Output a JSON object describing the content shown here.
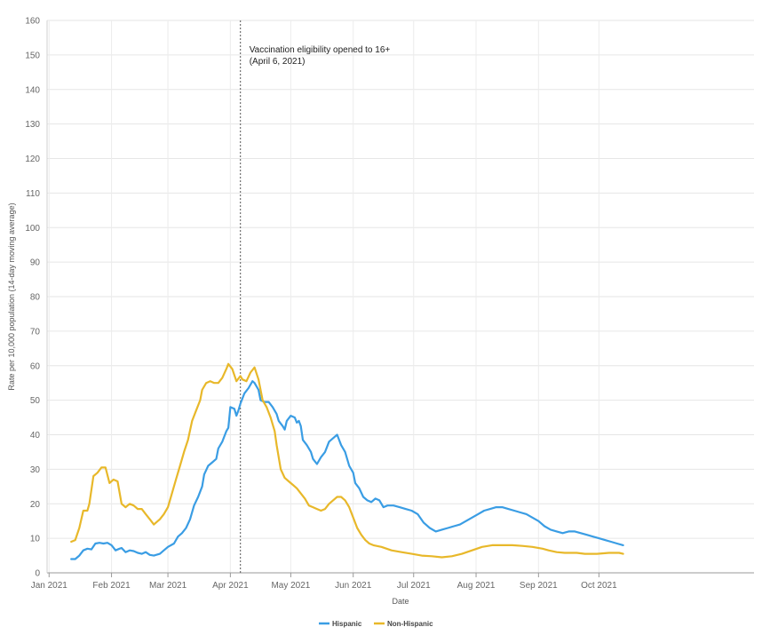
{
  "chart_data": {
    "type": "line",
    "title": "",
    "xlabel": "Date",
    "ylabel": "Rate per 10,000 population (14-day moving average)",
    "ylim": [
      0,
      160
    ],
    "yticks": [
      0,
      10,
      20,
      30,
      40,
      50,
      60,
      70,
      80,
      90,
      100,
      110,
      120,
      130,
      140,
      150,
      160
    ],
    "xlim": [
      -1,
      350
    ],
    "xticks": [
      {
        "day": 0,
        "label": "Jan 2021"
      },
      {
        "day": 31,
        "label": "Feb 2021"
      },
      {
        "day": 59,
        "label": "Mar 2021"
      },
      {
        "day": 90,
        "label": "Apr 2021"
      },
      {
        "day": 120,
        "label": "May 2021"
      },
      {
        "day": 151,
        "label": "Jun 2021"
      },
      {
        "day": 181,
        "label": "Jul 2021"
      },
      {
        "day": 212,
        "label": "Aug 2021"
      },
      {
        "day": 243,
        "label": "Sep 2021"
      },
      {
        "day": 273,
        "label": "Oct 2021"
      }
    ],
    "x_unit": "days since Jan 1, 2021",
    "annotation": {
      "day": 95,
      "line1": "Vaccination eligibility opened to 16+",
      "line2": "(April 6, 2021)"
    },
    "legend_position": "bottom-center",
    "series": [
      {
        "name": "Hispanic",
        "color": "#3a9de4",
        "points": [
          [
            11,
            4
          ],
          [
            13,
            4
          ],
          [
            15,
            5
          ],
          [
            17,
            6.5
          ],
          [
            19,
            7
          ],
          [
            21,
            6.8
          ],
          [
            23,
            8.5
          ],
          [
            25,
            8.7
          ],
          [
            27,
            8.5
          ],
          [
            29,
            8.7
          ],
          [
            31,
            8
          ],
          [
            33,
            6.5
          ],
          [
            35,
            7
          ],
          [
            36,
            7.2
          ],
          [
            38,
            6
          ],
          [
            40,
            6.5
          ],
          [
            42,
            6.3
          ],
          [
            44,
            5.8
          ],
          [
            46,
            5.5
          ],
          [
            48,
            6
          ],
          [
            50,
            5.2
          ],
          [
            52,
            5
          ],
          [
            55,
            5.5
          ],
          [
            57,
            6.5
          ],
          [
            59,
            7.5
          ],
          [
            62,
            8.5
          ],
          [
            64,
            10.5
          ],
          [
            66,
            11.5
          ],
          [
            68,
            13
          ],
          [
            70,
            15.5
          ],
          [
            72,
            19.5
          ],
          [
            74,
            22
          ],
          [
            76,
            25
          ],
          [
            77,
            28.5
          ],
          [
            79,
            31
          ],
          [
            81,
            32
          ],
          [
            83,
            33
          ],
          [
            84,
            36
          ],
          [
            86,
            38
          ],
          [
            88,
            41
          ],
          [
            89,
            42
          ],
          [
            90,
            48
          ],
          [
            92,
            47.5
          ],
          [
            93,
            45.5
          ],
          [
            94,
            47
          ],
          [
            95,
            49
          ],
          [
            97,
            52
          ],
          [
            99,
            53.5
          ],
          [
            101,
            55.5
          ],
          [
            102,
            55
          ],
          [
            104,
            53
          ],
          [
            105,
            50
          ],
          [
            107,
            49.5
          ],
          [
            109,
            49.5
          ],
          [
            111,
            48
          ],
          [
            113,
            46
          ],
          [
            114,
            44
          ],
          [
            116,
            42.5
          ],
          [
            117,
            41.5
          ],
          [
            118,
            44
          ],
          [
            120,
            45.5
          ],
          [
            122,
            45
          ],
          [
            123,
            43.5
          ],
          [
            124,
            44
          ],
          [
            125,
            42.5
          ],
          [
            126,
            38.5
          ],
          [
            128,
            37
          ],
          [
            130,
            35
          ],
          [
            131,
            33
          ],
          [
            133,
            31.5
          ],
          [
            135,
            33.5
          ],
          [
            137,
            35
          ],
          [
            139,
            38
          ],
          [
            141,
            39
          ],
          [
            143,
            40
          ],
          [
            145,
            37
          ],
          [
            147,
            35
          ],
          [
            149,
            31
          ],
          [
            151,
            29
          ],
          [
            152,
            26
          ],
          [
            154,
            24.5
          ],
          [
            156,
            22
          ],
          [
            158,
            21
          ],
          [
            160,
            20.5
          ],
          [
            162,
            21.5
          ],
          [
            164,
            21
          ],
          [
            166,
            19
          ],
          [
            168,
            19.5
          ],
          [
            171,
            19.5
          ],
          [
            174,
            19
          ],
          [
            177,
            18.5
          ],
          [
            180,
            18
          ],
          [
            183,
            17
          ],
          [
            186,
            14.5
          ],
          [
            189,
            13
          ],
          [
            192,
            12
          ],
          [
            195,
            12.5
          ],
          [
            198,
            13
          ],
          [
            201,
            13.5
          ],
          [
            204,
            14
          ],
          [
            207,
            15
          ],
          [
            210,
            16
          ],
          [
            213,
            17
          ],
          [
            216,
            18
          ],
          [
            219,
            18.5
          ],
          [
            222,
            19
          ],
          [
            225,
            19
          ],
          [
            228,
            18.5
          ],
          [
            231,
            18
          ],
          [
            234,
            17.5
          ],
          [
            237,
            17
          ],
          [
            240,
            16
          ],
          [
            243,
            15
          ],
          [
            246,
            13.5
          ],
          [
            249,
            12.5
          ],
          [
            252,
            12
          ],
          [
            255,
            11.5
          ],
          [
            258,
            12
          ],
          [
            261,
            12
          ],
          [
            264,
            11.5
          ],
          [
            267,
            11
          ],
          [
            270,
            10.5
          ],
          [
            273,
            10
          ],
          [
            276,
            9.5
          ],
          [
            279,
            9
          ],
          [
            282,
            8.5
          ],
          [
            285,
            8
          ]
        ]
      },
      {
        "name": "Non-Hispanic",
        "color": "#e8b82a",
        "points": [
          [
            11,
            9
          ],
          [
            13,
            9.5
          ],
          [
            15,
            13
          ],
          [
            17,
            18
          ],
          [
            19,
            18
          ],
          [
            20,
            20
          ],
          [
            22,
            28
          ],
          [
            24,
            29
          ],
          [
            26,
            30.5
          ],
          [
            28,
            30.5
          ],
          [
            30,
            26
          ],
          [
            32,
            27
          ],
          [
            34,
            26.5
          ],
          [
            36,
            20
          ],
          [
            38,
            19
          ],
          [
            40,
            20
          ],
          [
            42,
            19.5
          ],
          [
            44,
            18.5
          ],
          [
            46,
            18.5
          ],
          [
            48,
            17
          ],
          [
            50,
            15.5
          ],
          [
            52,
            14
          ],
          [
            55,
            15.5
          ],
          [
            57,
            17
          ],
          [
            59,
            19
          ],
          [
            61,
            23
          ],
          [
            63,
            27
          ],
          [
            65,
            31
          ],
          [
            67,
            35
          ],
          [
            69,
            38.5
          ],
          [
            71,
            44
          ],
          [
            73,
            47
          ],
          [
            75,
            50
          ],
          [
            76,
            53
          ],
          [
            78,
            55
          ],
          [
            80,
            55.5
          ],
          [
            82,
            55
          ],
          [
            84,
            55
          ],
          [
            86,
            56.5
          ],
          [
            88,
            59
          ],
          [
            89,
            60.5
          ],
          [
            91,
            59
          ],
          [
            93,
            55.5
          ],
          [
            95,
            57
          ],
          [
            96,
            56
          ],
          [
            98,
            55.5
          ],
          [
            100,
            58
          ],
          [
            102,
            59.5
          ],
          [
            104,
            56
          ],
          [
            106,
            50
          ],
          [
            108,
            48
          ],
          [
            110,
            45
          ],
          [
            112,
            41
          ],
          [
            113,
            37
          ],
          [
            115,
            30
          ],
          [
            117,
            27.5
          ],
          [
            119,
            26.5
          ],
          [
            121,
            25.5
          ],
          [
            123,
            24.5
          ],
          [
            125,
            23
          ],
          [
            127,
            21.5
          ],
          [
            129,
            19.5
          ],
          [
            131,
            19
          ],
          [
            133,
            18.5
          ],
          [
            135,
            18
          ],
          [
            137,
            18.5
          ],
          [
            139,
            20
          ],
          [
            141,
            21
          ],
          [
            143,
            22
          ],
          [
            145,
            22
          ],
          [
            147,
            21
          ],
          [
            149,
            19
          ],
          [
            151,
            16
          ],
          [
            153,
            13
          ],
          [
            155,
            11
          ],
          [
            157,
            9.5
          ],
          [
            159,
            8.5
          ],
          [
            161,
            8
          ],
          [
            165,
            7.5
          ],
          [
            170,
            6.5
          ],
          [
            175,
            6
          ],
          [
            180,
            5.5
          ],
          [
            185,
            5
          ],
          [
            190,
            4.8
          ],
          [
            195,
            4.5
          ],
          [
            200,
            4.8
          ],
          [
            205,
            5.5
          ],
          [
            210,
            6.5
          ],
          [
            215,
            7.5
          ],
          [
            220,
            8
          ],
          [
            225,
            8
          ],
          [
            230,
            8
          ],
          [
            235,
            7.8
          ],
          [
            240,
            7.5
          ],
          [
            245,
            7
          ],
          [
            248,
            6.5
          ],
          [
            252,
            6
          ],
          [
            256,
            5.8
          ],
          [
            262,
            5.8
          ],
          [
            266,
            5.5
          ],
          [
            272,
            5.5
          ],
          [
            278,
            5.8
          ],
          [
            283,
            5.8
          ],
          [
            285,
            5.5
          ]
        ]
      }
    ]
  }
}
